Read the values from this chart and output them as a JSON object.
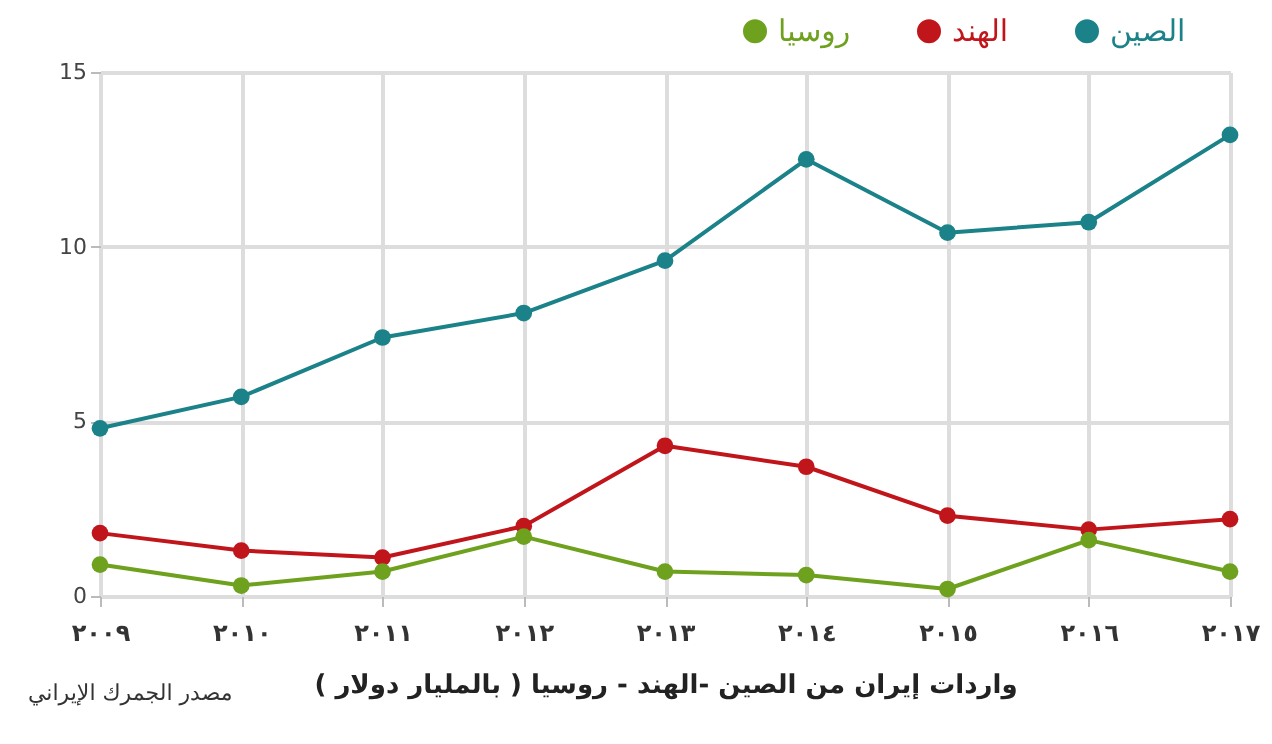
{
  "chart_data": {
    "type": "line",
    "xlabel": "واردات إيران من الصين -الهند - روسيا ( بالمليار دولار )",
    "annotations": [
      "مصدر الجمرك الإيراني"
    ],
    "categories": [
      "٢٠٠٩",
      "٢٠١٠",
      "٢٠١١",
      "٢٠١٢",
      "٢٠١٣",
      "٢٠١٤",
      "٢٠١٥",
      "٢٠١٦",
      "٢٠١٧"
    ],
    "series": [
      {
        "name": "الصين",
        "color": "#1a8288",
        "values": [
          4.8,
          5.7,
          7.4,
          8.1,
          9.6,
          12.5,
          10.4,
          10.7,
          13.2
        ]
      },
      {
        "name": "الهند",
        "color": "#c0161b",
        "values": [
          1.8,
          1.3,
          1.1,
          2.0,
          4.3,
          3.7,
          2.3,
          1.9,
          2.2
        ]
      },
      {
        "name": "روسيا",
        "color": "#6ea11d",
        "values": [
          0.9,
          0.3,
          0.7,
          1.7,
          0.7,
          0.6,
          0.2,
          1.6,
          0.7
        ]
      }
    ],
    "ylim": [
      0,
      15
    ],
    "yticks": [
      0,
      5,
      10,
      15
    ],
    "grid": true,
    "legend": "top right",
    "marker": "circle",
    "line_style": "solid"
  }
}
